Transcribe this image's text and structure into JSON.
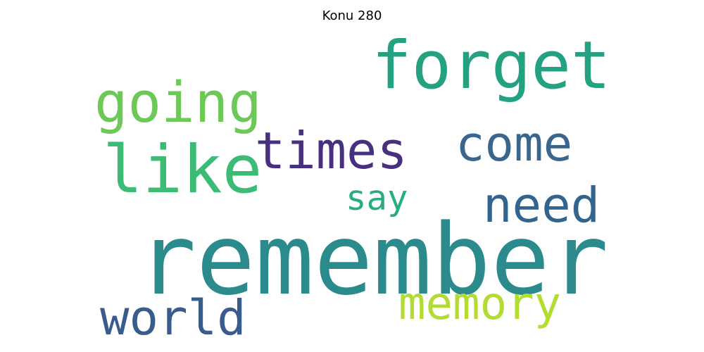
{
  "title": "Konu 280",
  "words": [
    {
      "id": "w-remember",
      "text": "remember",
      "color": "#2a8a8c"
    },
    {
      "id": "w-forget",
      "text": "forget",
      "color": "#24a181"
    },
    {
      "id": "w-like",
      "text": "like",
      "color": "#3cbb75"
    },
    {
      "id": "w-going",
      "text": "going",
      "color": "#6cc857"
    },
    {
      "id": "w-times",
      "text": "times",
      "color": "#47307f"
    },
    {
      "id": "w-come",
      "text": "come",
      "color": "#3a668d"
    },
    {
      "id": "w-need",
      "text": "need",
      "color": "#31648e"
    },
    {
      "id": "w-world",
      "text": "world",
      "color": "#3a5c8c"
    },
    {
      "id": "w-memory",
      "text": "memory",
      "color": "#b2dc32"
    },
    {
      "id": "w-say",
      "text": "say",
      "color": "#27ad80"
    }
  ]
}
